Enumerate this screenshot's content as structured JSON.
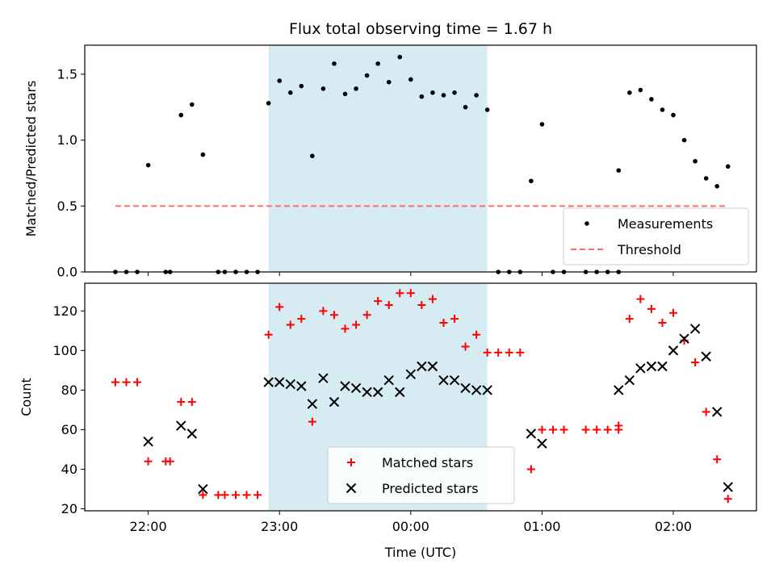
{
  "chart_data": [
    {
      "type": "scatter",
      "title": "Flux total observing time = 1.67 h",
      "xlabel": "",
      "ylabel": "Matched/Predicted stars",
      "ylim": [
        0,
        1.72
      ],
      "yticks": [
        "0.0",
        "0.5",
        "1.0",
        "1.5"
      ],
      "xlim": [
        "21:31",
        "02:38"
      ],
      "shaded_region": [
        "22:55",
        "00:35"
      ],
      "legend_position": "lower-right",
      "series": [
        {
          "name": "Measurements",
          "marker": "dot",
          "color": "#000000",
          "points": [
            [
              "21:45",
              0
            ],
            [
              "21:50",
              0
            ],
            [
              "21:55",
              0
            ],
            [
              "22:00",
              0.81
            ],
            [
              "22:08",
              0
            ],
            [
              "22:10",
              0
            ],
            [
              "22:15",
              1.19
            ],
            [
              "22:20",
              1.27
            ],
            [
              "22:25",
              0.89
            ],
            [
              "22:32",
              0
            ],
            [
              "22:35",
              0
            ],
            [
              "22:40",
              0
            ],
            [
              "22:45",
              0
            ],
            [
              "22:50",
              0
            ],
            [
              "22:55",
              1.28
            ],
            [
              "23:00",
              1.45
            ],
            [
              "23:05",
              1.36
            ],
            [
              "23:10",
              1.41
            ],
            [
              "23:15",
              0.88
            ],
            [
              "23:20",
              1.39
            ],
            [
              "23:25",
              1.58
            ],
            [
              "23:30",
              1.35
            ],
            [
              "23:35",
              1.39
            ],
            [
              "23:40",
              1.49
            ],
            [
              "23:45",
              1.58
            ],
            [
              "23:50",
              1.44
            ],
            [
              "23:55",
              1.63
            ],
            [
              "00:00",
              1.46
            ],
            [
              "00:05",
              1.33
            ],
            [
              "00:10",
              1.36
            ],
            [
              "00:15",
              1.34
            ],
            [
              "00:20",
              1.36
            ],
            [
              "00:25",
              1.25
            ],
            [
              "00:30",
              1.34
            ],
            [
              "00:35",
              1.23
            ],
            [
              "00:40",
              0
            ],
            [
              "00:45",
              0
            ],
            [
              "00:50",
              0
            ],
            [
              "00:55",
              0.69
            ],
            [
              "01:00",
              1.12
            ],
            [
              "01:05",
              0
            ],
            [
              "01:10",
              0
            ],
            [
              "01:20",
              0
            ],
            [
              "01:25",
              0
            ],
            [
              "01:30",
              0
            ],
            [
              "01:35",
              0
            ],
            [
              "01:35",
              0.77
            ],
            [
              "01:40",
              1.36
            ],
            [
              "01:45",
              1.38
            ],
            [
              "01:50",
              1.31
            ],
            [
              "01:55",
              1.23
            ],
            [
              "02:00",
              1.19
            ],
            [
              "02:05",
              1.0
            ],
            [
              "02:10",
              0.84
            ],
            [
              "02:15",
              0.71
            ],
            [
              "02:20",
              0.65
            ],
            [
              "02:25",
              0.8
            ]
          ]
        },
        {
          "name": "Threshold",
          "marker": "dashed-line",
          "color": "#ff6b6b",
          "points": [
            [
              "21:45",
              0.5
            ],
            [
              "02:25",
              0.5
            ]
          ]
        }
      ]
    },
    {
      "type": "scatter",
      "title": "",
      "xlabel": "Time (UTC)",
      "ylabel": "Count",
      "ylim": [
        19,
        134
      ],
      "yticks": [
        "20",
        "40",
        "60",
        "80",
        "100",
        "120"
      ],
      "xticks": [
        "22:00",
        "23:00",
        "00:00",
        "01:00",
        "02:00"
      ],
      "xlim": [
        "21:31",
        "02:38"
      ],
      "shaded_region": [
        "22:55",
        "00:35"
      ],
      "legend_position": "lower-center",
      "series": [
        {
          "name": "Matched stars",
          "marker": "plus",
          "color": "#ff0000",
          "points": [
            [
              "21:45",
              84
            ],
            [
              "21:50",
              84
            ],
            [
              "21:55",
              84
            ],
            [
              "22:00",
              44
            ],
            [
              "22:08",
              44
            ],
            [
              "22:10",
              44
            ],
            [
              "22:15",
              74
            ],
            [
              "22:20",
              74
            ],
            [
              "22:25",
              27
            ],
            [
              "22:32",
              27
            ],
            [
              "22:35",
              27
            ],
            [
              "22:40",
              27
            ],
            [
              "22:45",
              27
            ],
            [
              "22:50",
              27
            ],
            [
              "22:55",
              108
            ],
            [
              "23:00",
              122
            ],
            [
              "23:05",
              113
            ],
            [
              "23:10",
              116
            ],
            [
              "23:15",
              64
            ],
            [
              "23:20",
              120
            ],
            [
              "23:25",
              118
            ],
            [
              "23:30",
              111
            ],
            [
              "23:35",
              113
            ],
            [
              "23:40",
              118
            ],
            [
              "23:45",
              125
            ],
            [
              "23:50",
              123
            ],
            [
              "23:55",
              129
            ],
            [
              "00:00",
              129
            ],
            [
              "00:05",
              123
            ],
            [
              "00:10",
              126
            ],
            [
              "00:15",
              114
            ],
            [
              "00:20",
              116
            ],
            [
              "00:25",
              102
            ],
            [
              "00:30",
              108
            ],
            [
              "00:35",
              99
            ],
            [
              "00:40",
              99
            ],
            [
              "00:45",
              99
            ],
            [
              "00:50",
              99
            ],
            [
              "00:55",
              40
            ],
            [
              "01:00",
              60
            ],
            [
              "01:05",
              60
            ],
            [
              "01:10",
              60
            ],
            [
              "01:20",
              60
            ],
            [
              "01:25",
              60
            ],
            [
              "01:30",
              60
            ],
            [
              "01:35",
              60
            ],
            [
              "01:35",
              62
            ],
            [
              "01:40",
              116
            ],
            [
              "01:45",
              126
            ],
            [
              "01:50",
              121
            ],
            [
              "01:55",
              114
            ],
            [
              "02:00",
              119
            ],
            [
              "02:05",
              105
            ],
            [
              "02:10",
              94
            ],
            [
              "02:15",
              69
            ],
            [
              "02:20",
              45
            ],
            [
              "02:25",
              25
            ]
          ]
        },
        {
          "name": "Predicted stars",
          "marker": "x",
          "color": "#000000",
          "points": [
            [
              "22:00",
              54
            ],
            [
              "22:15",
              62
            ],
            [
              "22:20",
              58
            ],
            [
              "22:25",
              30
            ],
            [
              "22:55",
              84
            ],
            [
              "23:00",
              84
            ],
            [
              "23:05",
              83
            ],
            [
              "23:10",
              82
            ],
            [
              "23:15",
              73
            ],
            [
              "23:20",
              86
            ],
            [
              "23:25",
              74
            ],
            [
              "23:30",
              82
            ],
            [
              "23:35",
              81
            ],
            [
              "23:40",
              79
            ],
            [
              "23:45",
              79
            ],
            [
              "23:50",
              85
            ],
            [
              "23:55",
              79
            ],
            [
              "00:00",
              88
            ],
            [
              "00:05",
              92
            ],
            [
              "00:10",
              92
            ],
            [
              "00:15",
              85
            ],
            [
              "00:20",
              85
            ],
            [
              "00:25",
              81
            ],
            [
              "00:30",
              80
            ],
            [
              "00:35",
              80
            ],
            [
              "00:55",
              58
            ],
            [
              "01:00",
              53
            ],
            [
              "01:35",
              80
            ],
            [
              "01:40",
              85
            ],
            [
              "01:45",
              91
            ],
            [
              "01:50",
              92
            ],
            [
              "01:55",
              92
            ],
            [
              "02:00",
              100
            ],
            [
              "02:05",
              106
            ],
            [
              "02:10",
              111
            ],
            [
              "02:15",
              97
            ],
            [
              "02:20",
              69
            ],
            [
              "02:25",
              31
            ]
          ]
        }
      ]
    }
  ]
}
